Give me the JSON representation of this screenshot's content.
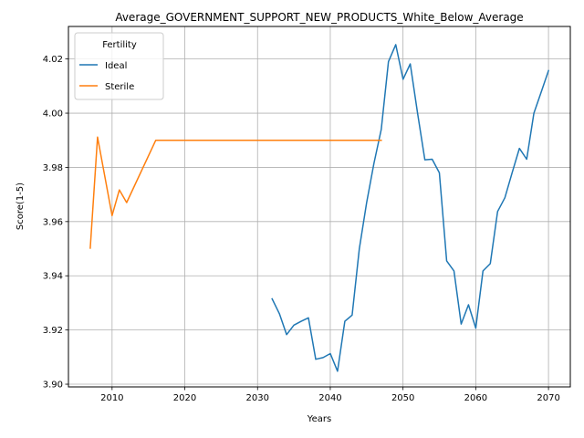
{
  "chart_data": {
    "type": "line",
    "title": "Average_GOVERNMENT_SUPPORT_NEW_PRODUCTS_White_Below_Average",
    "xlabel": "Years",
    "ylabel": "Score(1-5)",
    "xlim": [
      2004,
      2073
    ],
    "ylim": [
      3.899,
      4.032
    ],
    "xticks": [
      2010,
      2020,
      2030,
      2040,
      2050,
      2060,
      2070
    ],
    "yticks": [
      3.9,
      3.92,
      3.94,
      3.96,
      3.98,
      4.0,
      4.02
    ],
    "ytick_labels": [
      "3.90",
      "3.92",
      "3.94",
      "3.96",
      "3.98",
      "4.00",
      "4.02"
    ],
    "grid": true,
    "legend": {
      "title": "Fertility",
      "placement": "top-left"
    },
    "series": [
      {
        "name": "Ideal",
        "color": "#1f77b4",
        "x": [
          2032,
          2033,
          2034,
          2035,
          2036,
          2037,
          2038,
          2039,
          2040,
          2041,
          2042,
          2043,
          2044,
          2045,
          2046,
          2047,
          2048,
          2049,
          2050,
          2051,
          2052,
          2053,
          2054,
          2055,
          2056,
          2057,
          2058,
          2059,
          2060,
          2061,
          2062,
          2063,
          2064,
          2065,
          2066,
          2067,
          2068,
          2069,
          2070
        ],
        "y": [
          3.9315,
          3.926,
          3.9183,
          3.9218,
          3.9232,
          3.9245,
          3.9092,
          3.9098,
          3.9113,
          3.9048,
          3.9232,
          3.9255,
          3.95,
          3.967,
          3.9815,
          3.994,
          4.019,
          4.0253,
          4.0125,
          4.0182,
          4.0,
          3.9828,
          3.983,
          3.978,
          3.9455,
          3.9418,
          3.9222,
          3.9293,
          3.9207,
          3.9418,
          3.9445,
          3.9637,
          3.9688,
          3.978,
          3.987,
          3.983,
          4.0,
          4.0078,
          4.0157
        ]
      },
      {
        "name": "Sterile",
        "color": "#ff7f0e",
        "x": [
          2007,
          2008,
          2010,
          2011,
          2012,
          2016,
          2020,
          2030,
          2040,
          2047
        ],
        "y": [
          3.9502,
          3.9912,
          3.9622,
          3.9717,
          3.967,
          3.99,
          3.99,
          3.99,
          3.99,
          3.99
        ]
      }
    ]
  }
}
